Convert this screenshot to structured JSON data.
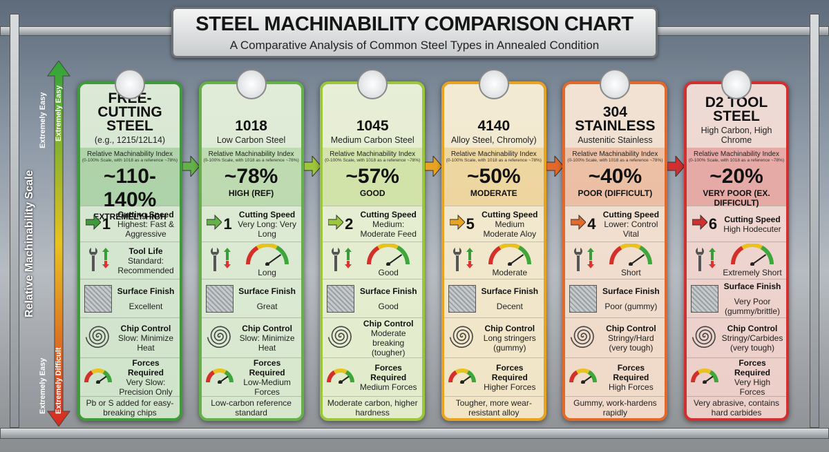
{
  "header": {
    "title": "STEEL MACHINABILITY COMPARISON CHART",
    "subtitle": "A Comparative Analysis of Common Steel Types in Annealed Condition"
  },
  "scale": {
    "title": "Relative Machinability Scale",
    "top_labels": [
      "Extremely Easy",
      "Extremely Easy"
    ],
    "bottom_labels": [
      "Extremely Easy",
      "Extremely Difficult"
    ]
  },
  "cards": [
    {
      "color": "#3f9a3a",
      "name": "FREE-CUTTING STEEL",
      "subtitle": "(e.g., 1215/12L14)",
      "index_label": "Relative Machinability Index",
      "index_note": "(0-100% Scale, with 1018 as a reference ~78%)",
      "index_value": "~110-140%",
      "rating": "EXTREMELY HIGH",
      "speed_rank": 1,
      "speed_label": "Cutting Speed",
      "speed_text": "Highest: Fast & Aggressive",
      "tool_label": "Tool Life",
      "tool_text": "Standard: Recommended",
      "surface_label": "Surface Finish",
      "surface_text": "Excellent",
      "chip_label": "Chip Control",
      "chip_text": "Slow: Minimize Heat",
      "forces_label": "Forces Required",
      "forces_text": "Very Slow: Precision Only",
      "footer": "Pb or S added for easy-breaking chips"
    },
    {
      "color": "#66b04a",
      "name": "1018",
      "subtitle": "Low Carbon Steel",
      "index_label": "Relative Machinability Index",
      "index_note": "(0-100% Scale, with 1018 as a reference ~78%)",
      "index_value": "~78%",
      "rating": "HIGH (REF)",
      "speed_rank": 1,
      "speed_label": "Cutting Speed",
      "speed_text": "Very Long: Very Long",
      "tool_text": "Long",
      "surface_label": "Surface Finish",
      "surface_text": "Great",
      "chip_label": "Chip Control",
      "chip_text": "Slow: Minimize Heat",
      "forces_label": "Forces Required",
      "forces_text": "Low-Medium Forces",
      "footer": "Low-carbon reference standard"
    },
    {
      "color": "#9cc63c",
      "name": "1045",
      "subtitle": "Medium Carbon Steel",
      "index_label": "Relative Machinability Index",
      "index_note": "(0-100% Scale, with 1018 as a reference ~78%)",
      "index_value": "~57%",
      "rating": "GOOD",
      "speed_rank": 2,
      "speed_label": "Cutting Speed",
      "speed_text": "Medium: Moderate Feed",
      "tool_text": "Good",
      "surface_label": "Surface Finish",
      "surface_text": "Good",
      "chip_label": "Chip Control",
      "chip_text": "Moderate breaking (tougher)",
      "forces_label": "Forces Required",
      "forces_text": "Medium Forces",
      "footer": "Moderate carbon, higher hardness"
    },
    {
      "color": "#e8a323",
      "name": "4140",
      "subtitle": "Alloy Steel, Chromoly)",
      "index_label": "Relative Machinability Index",
      "index_note": "(0-100% Scale, with 1018 as a reference ~78%)",
      "index_value": "~50%",
      "rating": "MODERATE",
      "speed_rank": 5,
      "speed_label": "Cutting Speed",
      "speed_text": "Medium Moderate Aloy",
      "tool_text": "Moderate",
      "surface_label": "Surface Finish",
      "surface_text": "Decent",
      "chip_label": "Chip Control",
      "chip_text": "Long stringers (gummy)",
      "forces_label": "Forces Required",
      "forces_text": "Higher Forces",
      "footer": "Tougher, more wear-resistant alloy"
    },
    {
      "color": "#e2682c",
      "name": "304 STAINLESS",
      "subtitle": "Austenitic Stainless",
      "index_label": "Relative Machinability Index",
      "index_note": "(0-100% Scale, with 1018 as a reference ~78%)",
      "index_value": "~40%",
      "rating": "POOR (DIFFICULT)",
      "speed_rank": 4,
      "speed_label": "Cutting Speed",
      "speed_text": "Lower: Control Vital",
      "tool_text": "Short",
      "surface_label": "Surface Finish",
      "surface_text": "Poor (gummy)",
      "chip_label": "Chip Control",
      "chip_text": "Stringy/Hard (very tough)",
      "forces_label": "Forces Required",
      "forces_text": "High Forces",
      "footer": "Gummy, work-hardens rapidly"
    },
    {
      "color": "#d23030",
      "name": "D2 TOOL STEEL",
      "subtitle": "High Carbon, High Chrome",
      "index_label": "Relative Machinability Index",
      "index_note": "(0-100% Scale, with 1018 as a reference ~78%)",
      "index_value": "~20%",
      "rating": "VERY POOR (EX. DIFFICULT)",
      "speed_rank": 6,
      "speed_label": "Cutting Speed",
      "speed_text": "High Hodecuter",
      "tool_text": "Extremely Short",
      "surface_label": "Surface Finish",
      "surface_text": "Very Poor (gummy/brittle)",
      "chip_label": "Chip Control",
      "chip_text": "Stringy/Carbides (very tough)",
      "forces_label": "Forces Required",
      "forces_text": "Very High Forces",
      "footer": "Very abrasive, contains hard carbides"
    }
  ]
}
